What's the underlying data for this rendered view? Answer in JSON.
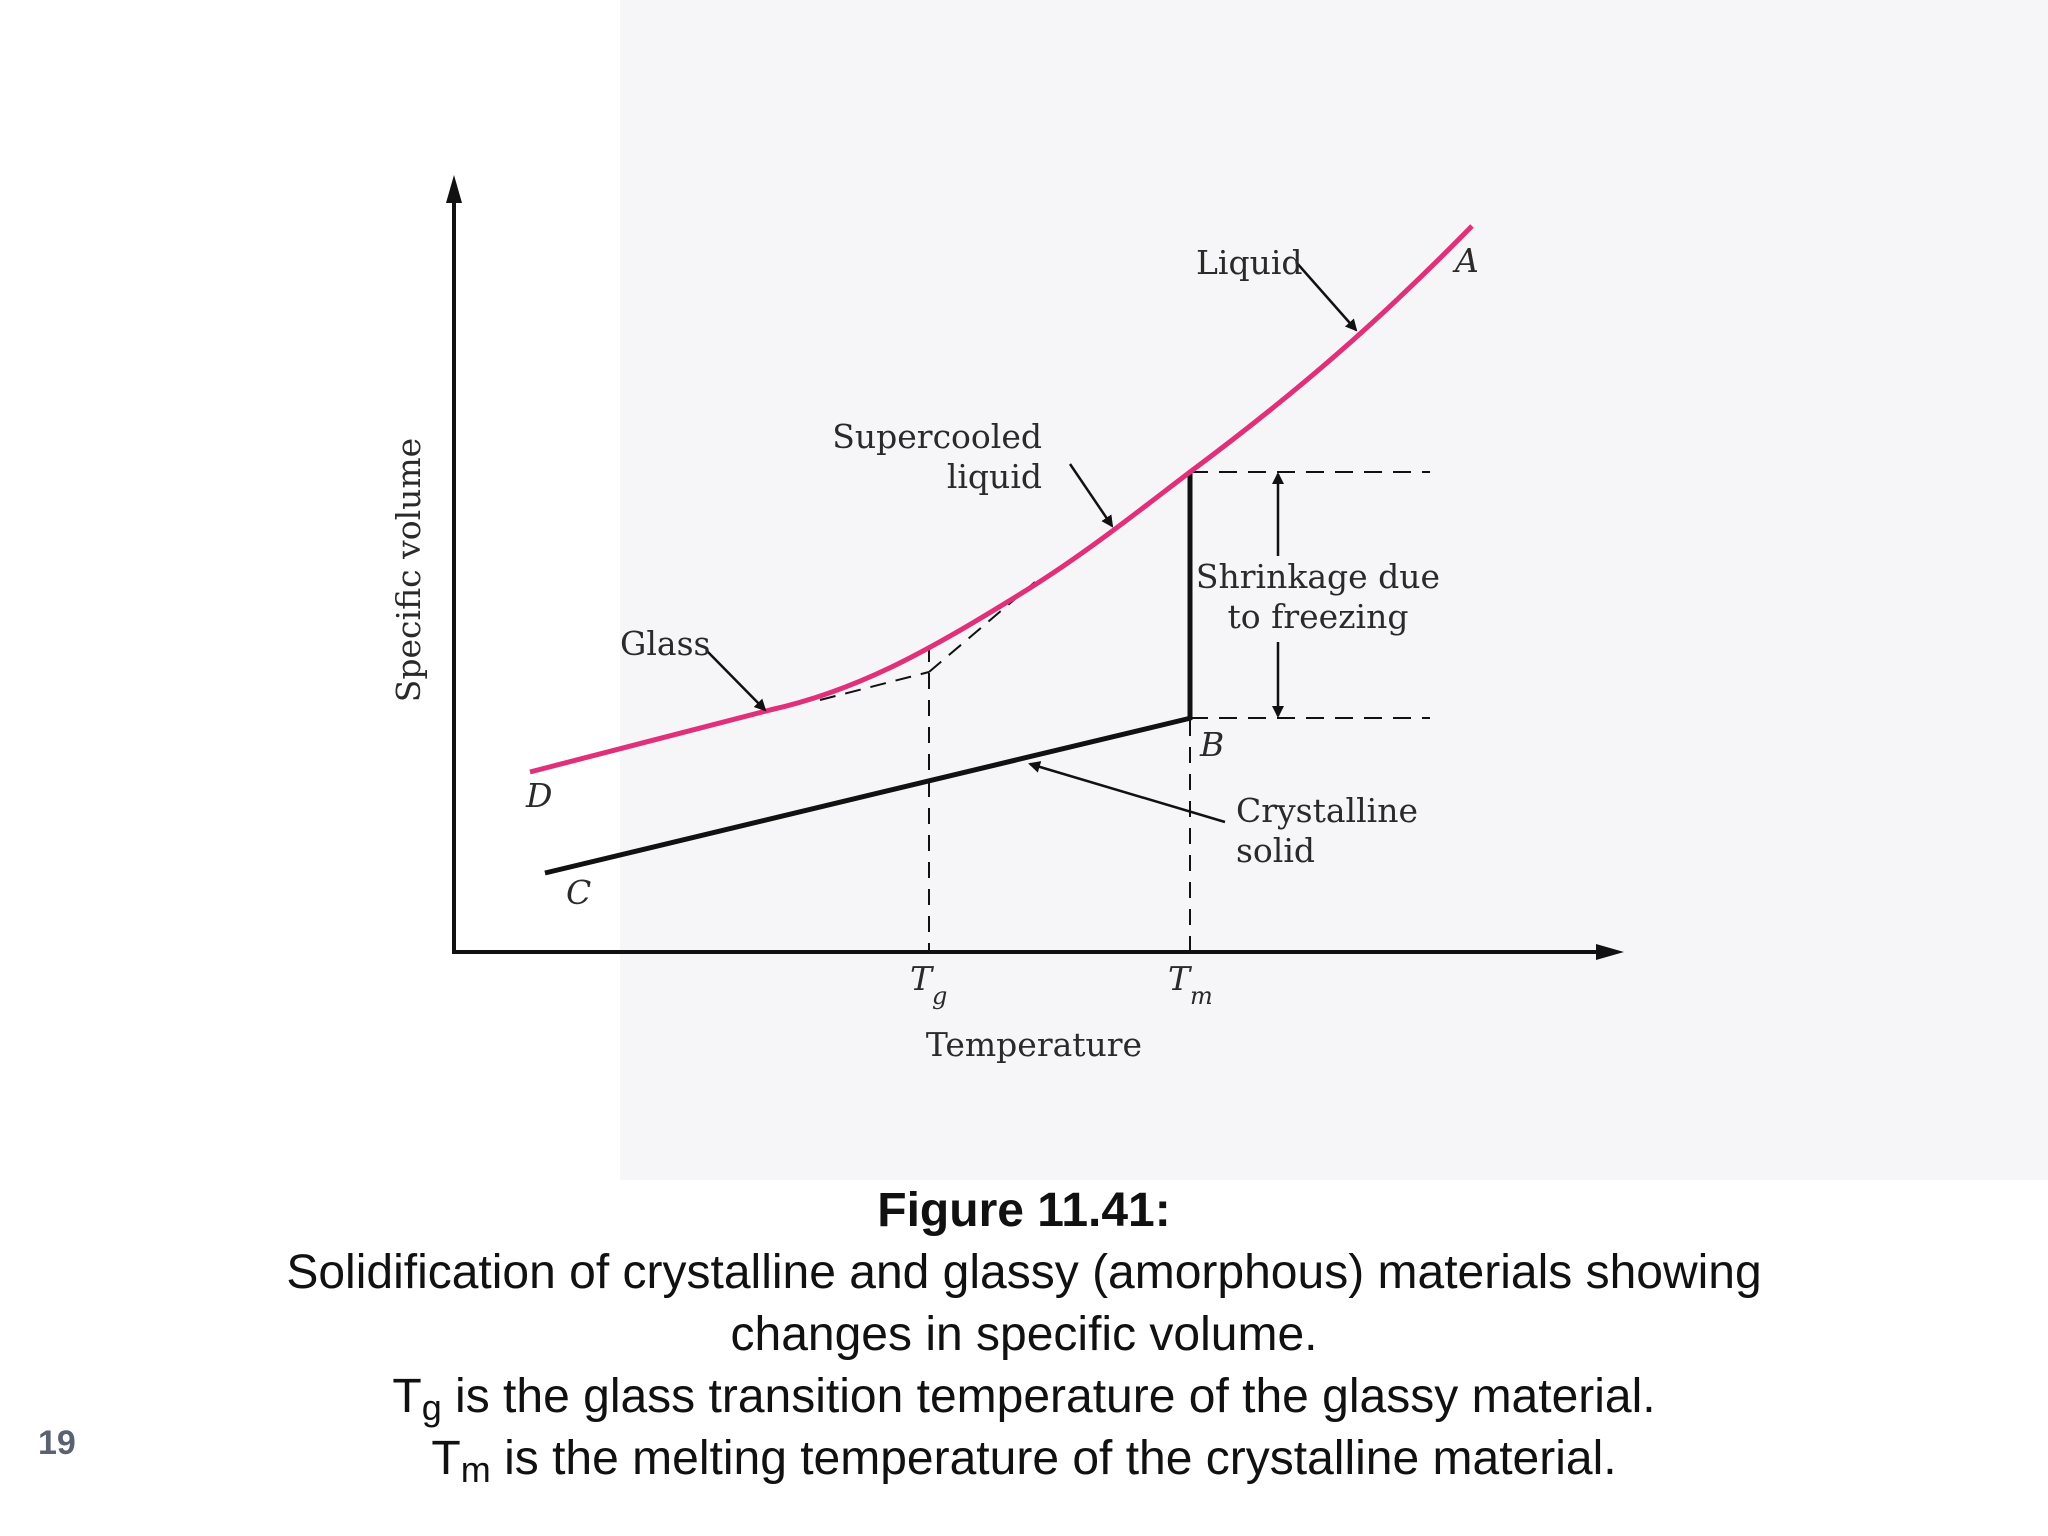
{
  "diagram": {
    "axis_y_label": "Specific volume",
    "axis_x_label": "Temperature",
    "tick_tg": {
      "main": "T",
      "sub": "g"
    },
    "tick_tm": {
      "main": "T",
      "sub": "m"
    },
    "point_a": "A",
    "point_b": "B",
    "point_c": "C",
    "point_d": "D",
    "label_liquid": "Liquid",
    "label_supercooled_1": "Supercooled",
    "label_supercooled_2": "liquid",
    "label_glass": "Glass",
    "label_shrinkage_1": "Shrinkage due",
    "label_shrinkage_2": "to freezing",
    "label_crystalline_1": "Crystalline",
    "label_crystalline_2": "solid",
    "colors": {
      "glass_curve": "#e0307a",
      "lines": "#111111"
    }
  },
  "caption": {
    "title": "Figure 11.41:",
    "line1": "Solidification of crystalline and glassy (amorphous) materials showing",
    "line2": "changes in specific volume.",
    "line3_symbol": "T",
    "line3_sub": "g",
    "line3_text": " is the glass transition temperature of the glassy material.",
    "line4_symbol": "T",
    "line4_sub": "m",
    "line4_text": " is the melting temperature of the crystalline material."
  },
  "page_number": "19"
}
